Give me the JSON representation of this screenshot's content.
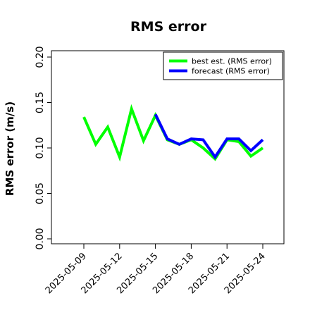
{
  "chart_data": {
    "type": "line",
    "title": "RMS error",
    "xlabel": "",
    "ylabel": "RMS error (m/s)",
    "ylim": [
      0.0,
      0.2
    ],
    "yticks": [
      "0.00",
      "0.05",
      "0.10",
      "0.15",
      "0.20"
    ],
    "x": [
      "2025-05-09",
      "2025-05-10",
      "2025-05-11",
      "2025-05-12",
      "2025-05-13",
      "2025-05-14",
      "2025-05-15",
      "2025-05-16",
      "2025-05-17",
      "2025-05-18",
      "2025-05-19",
      "2025-05-20",
      "2025-05-21",
      "2025-05-22",
      "2025-05-23",
      "2025-05-24",
      "2025-05-25"
    ],
    "xticks": [
      {
        "label": "2025-05-09",
        "color": "#000000"
      },
      {
        "label": "2025-05-12",
        "color": "#000000"
      },
      {
        "label": "2025-05-15",
        "color": "#228B22"
      },
      {
        "label": "2025-05-18",
        "color": "#000000"
      },
      {
        "label": "2025-05-21",
        "color": "#000000"
      },
      {
        "label": "2025-05-24",
        "color": "#000000"
      }
    ],
    "series": [
      {
        "name": "best est. (RMS error)",
        "color": "#00ff00",
        "x": [
          "2025-05-09",
          "2025-05-10",
          "2025-05-11",
          "2025-05-12",
          "2025-05-13",
          "2025-05-14",
          "2025-05-15",
          "2025-05-16",
          "2025-05-17",
          "2025-05-18",
          "2025-05-19",
          "2025-05-20",
          "2025-05-21",
          "2025-05-22",
          "2025-05-23",
          "2025-05-24",
          "2025-05-25"
        ],
        "values": [
          0.134,
          0.104,
          0.123,
          0.09,
          0.143,
          0.108,
          0.136,
          0.109,
          0.104,
          0.109,
          0.1,
          0.088,
          0.109,
          0.107,
          0.091,
          0.1,
          null
        ]
      },
      {
        "name": "forecast (RMS error)",
        "color": "#0000ff",
        "x": [
          "2025-05-09",
          "2025-05-10",
          "2025-05-11",
          "2025-05-12",
          "2025-05-13",
          "2025-05-14",
          "2025-05-15",
          "2025-05-16",
          "2025-05-17",
          "2025-05-18",
          "2025-05-19",
          "2025-05-20",
          "2025-05-21",
          "2025-05-22",
          "2025-05-23",
          "2025-05-24",
          "2025-05-25"
        ],
        "values": [
          null,
          null,
          null,
          null,
          null,
          null,
          0.137,
          0.11,
          0.104,
          0.11,
          0.109,
          0.09,
          0.11,
          0.11,
          0.097,
          0.109,
          null
        ]
      }
    ],
    "legend": "top-right",
    "grid": false
  }
}
